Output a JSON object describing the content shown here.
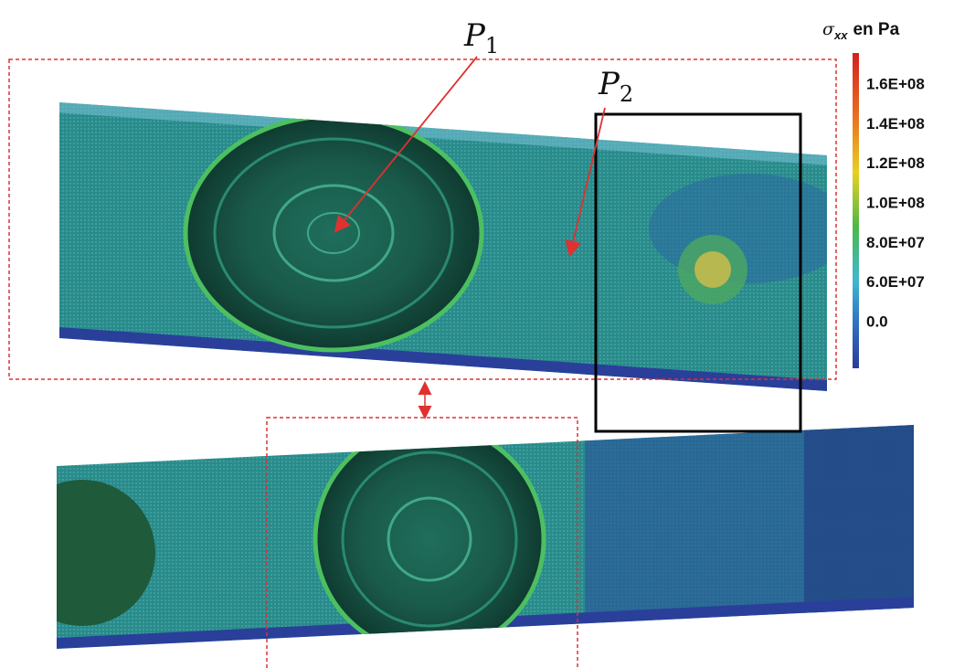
{
  "labels": {
    "p1": {
      "letter": "P",
      "index": "1"
    },
    "p2": {
      "letter": "P",
      "index": "2"
    }
  },
  "colorbar": {
    "symbol": "σ",
    "subscript": "xx",
    "unit": "en Pa",
    "ticks": [
      "1.6E+08",
      "1.4E+08",
      "1.2E+08",
      "1.0E+08",
      "8.0E+07",
      "6.0E+07",
      "0.0"
    ]
  }
}
